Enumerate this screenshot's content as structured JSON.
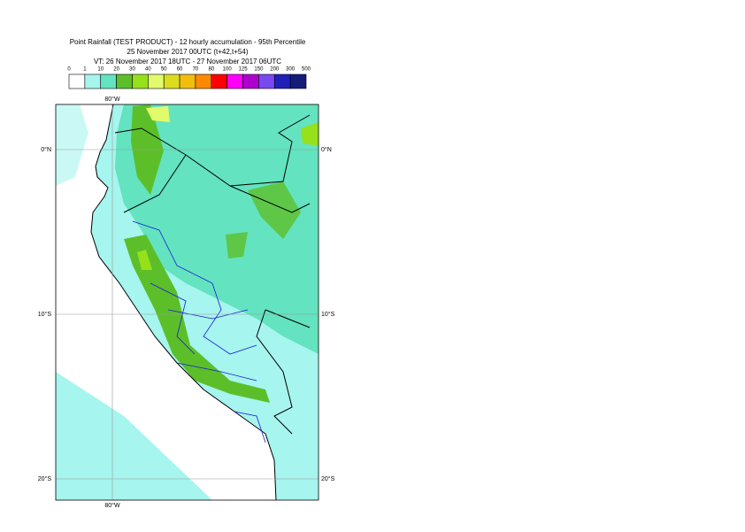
{
  "header": {
    "title": "Point Rainfall (TEST PRODUCT) - 12 hourly accumulation - 95th Percentile",
    "base_time": "25 November 2017 00UTC (t+42,t+54)",
    "valid_time": "VT: 26 November 2017 18UTC - 27 November 2017 06UTC"
  },
  "legend": {
    "labels": [
      0,
      1,
      10,
      20,
      30,
      40,
      50,
      60,
      70,
      80,
      100,
      125,
      150,
      200,
      300,
      500
    ],
    "colors": [
      "#ffffff",
      "#a6f5ee",
      "#63e3bf",
      "#5cbf2a",
      "#96e01c",
      "#e2fb6a",
      "#dcdc1e",
      "#f2be0c",
      "#ff8a00",
      "#ff0000",
      "#ff00ff",
      "#b000d0",
      "#7848f0",
      "#2020b8",
      "#141c7a"
    ]
  },
  "map": {
    "top_label": "80°W",
    "bottom_label": "80°W",
    "left_labels": [
      "0°N",
      "10°S",
      "20°S"
    ],
    "right_labels": [
      "0°N",
      "10°S",
      "20°S"
    ]
  }
}
